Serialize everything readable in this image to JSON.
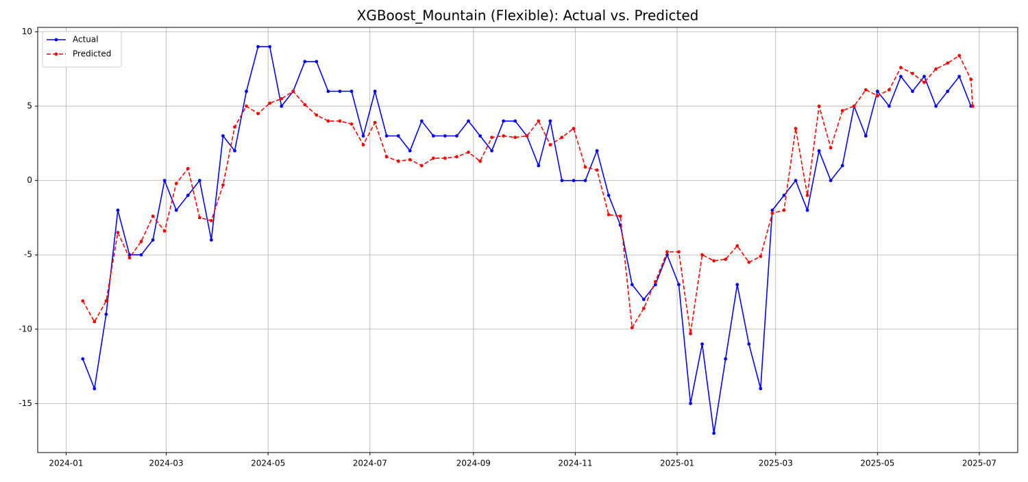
{
  "chart_data": {
    "type": "line",
    "title": "XGBoost_Mountain (Flexible): Actual vs. Predicted",
    "x": [
      "2024-01-11",
      "2024-01-18",
      "2024-01-25",
      "2024-02-01",
      "2024-02-08",
      "2024-02-15",
      "2024-02-22",
      "2024-02-29",
      "2024-03-07",
      "2024-03-14",
      "2024-03-21",
      "2024-03-28",
      "2024-04-04",
      "2024-04-11",
      "2024-04-18",
      "2024-04-25",
      "2024-05-02",
      "2024-05-09",
      "2024-05-16",
      "2024-05-23",
      "2024-05-30",
      "2024-06-06",
      "2024-06-13",
      "2024-06-20",
      "2024-06-27",
      "2024-07-04",
      "2024-07-11",
      "2024-07-18",
      "2024-07-25",
      "2024-08-01",
      "2024-08-08",
      "2024-08-15",
      "2024-08-22",
      "2024-08-29",
      "2024-09-05",
      "2024-09-12",
      "2024-09-19",
      "2024-09-26",
      "2024-10-03",
      "2024-10-10",
      "2024-10-17",
      "2024-10-24",
      "2024-10-31",
      "2024-11-07",
      "2024-11-14",
      "2024-11-21",
      "2024-11-28",
      "2024-12-05",
      "2024-12-12",
      "2024-12-19",
      "2024-12-26",
      "2025-01-02",
      "2025-01-09",
      "2025-01-16",
      "2025-01-23",
      "2025-01-30",
      "2025-02-06",
      "2025-02-13",
      "2025-02-20",
      "2025-02-27",
      "2025-03-06",
      "2025-03-13",
      "2025-03-20",
      "2025-03-27",
      "2025-04-03",
      "2025-04-10",
      "2025-04-17",
      "2025-04-24",
      "2025-05-01",
      "2025-05-08",
      "2025-05-15",
      "2025-05-22",
      "2025-05-29",
      "2025-06-05",
      "2025-06-12",
      "2025-06-19",
      "2025-06-26",
      "2025-06-27"
    ],
    "series": [
      {
        "name": "Actual",
        "color": "#0000ff",
        "dashed": false,
        "values": [
          -12,
          -14,
          -9,
          -2,
          -5,
          -5,
          -4,
          0,
          -2,
          -1,
          0,
          -4,
          3,
          2,
          6,
          9,
          9,
          5,
          6,
          8,
          8,
          6,
          6,
          6,
          3,
          6,
          3,
          3,
          2,
          4,
          3,
          3,
          3,
          4,
          3,
          2,
          4,
          4,
          3,
          1,
          4,
          0,
          0,
          0,
          2,
          -1,
          -3,
          -7,
          -8,
          -7,
          -5,
          -7,
          -15,
          -11,
          -17,
          -12,
          -7,
          -11,
          -14,
          -2,
          -1,
          0,
          -2,
          2,
          0,
          1,
          5,
          3,
          6,
          5,
          7,
          6,
          7,
          5,
          6,
          7,
          5,
          5
        ]
      },
      {
        "name": "Predicted",
        "color": "#ff0000",
        "dashed": true,
        "values": [
          -8.1,
          -9.5,
          -8.1,
          -3.5,
          -5.2,
          -4.1,
          -2.4,
          -3.4,
          -0.2,
          0.8,
          -2.5,
          -2.7,
          -0.3,
          3.6,
          5.0,
          4.5,
          5.2,
          5.5,
          6.0,
          5.1,
          4.4,
          4.0,
          4.0,
          3.8,
          2.4,
          3.9,
          1.6,
          1.3,
          1.4,
          1.0,
          1.5,
          1.5,
          1.6,
          1.9,
          1.3,
          2.9,
          3.0,
          2.9,
          3.0,
          4.0,
          2.4,
          2.9,
          3.5,
          0.9,
          0.7,
          -2.3,
          -2.4,
          -9.9,
          -8.6,
          -6.8,
          -4.8,
          -4.8,
          -10.3,
          -5.0,
          -5.4,
          -5.3,
          -4.4,
          -5.5,
          -5.1,
          -2.2,
          -2.0,
          3.5,
          -1.0,
          5.0,
          2.2,
          4.7,
          5.0,
          6.1,
          5.7,
          6.1,
          7.6,
          7.2,
          6.6,
          7.5,
          7.9,
          8.4,
          6.8,
          5.0
        ]
      }
    ],
    "xlim": [
      "2023-12-15",
      "2025-07-24"
    ],
    "xticks": [
      {
        "value": "2024-01-01",
        "label": "2024-01"
      },
      {
        "value": "2024-03-01",
        "label": "2024-03"
      },
      {
        "value": "2024-05-01",
        "label": "2024-05"
      },
      {
        "value": "2024-07-01",
        "label": "2024-07"
      },
      {
        "value": "2024-09-01",
        "label": "2024-09"
      },
      {
        "value": "2024-11-01",
        "label": "2024-11"
      },
      {
        "value": "2025-01-01",
        "label": "2025-01"
      },
      {
        "value": "2025-03-01",
        "label": "2025-03"
      },
      {
        "value": "2025-05-01",
        "label": "2025-05"
      },
      {
        "value": "2025-07-01",
        "label": "2025-07"
      }
    ],
    "ylim": [
      -18.3,
      10.3
    ],
    "yticks": [
      -15,
      -10,
      -5,
      0,
      5,
      10
    ],
    "grid": true,
    "legend": "upper left"
  }
}
